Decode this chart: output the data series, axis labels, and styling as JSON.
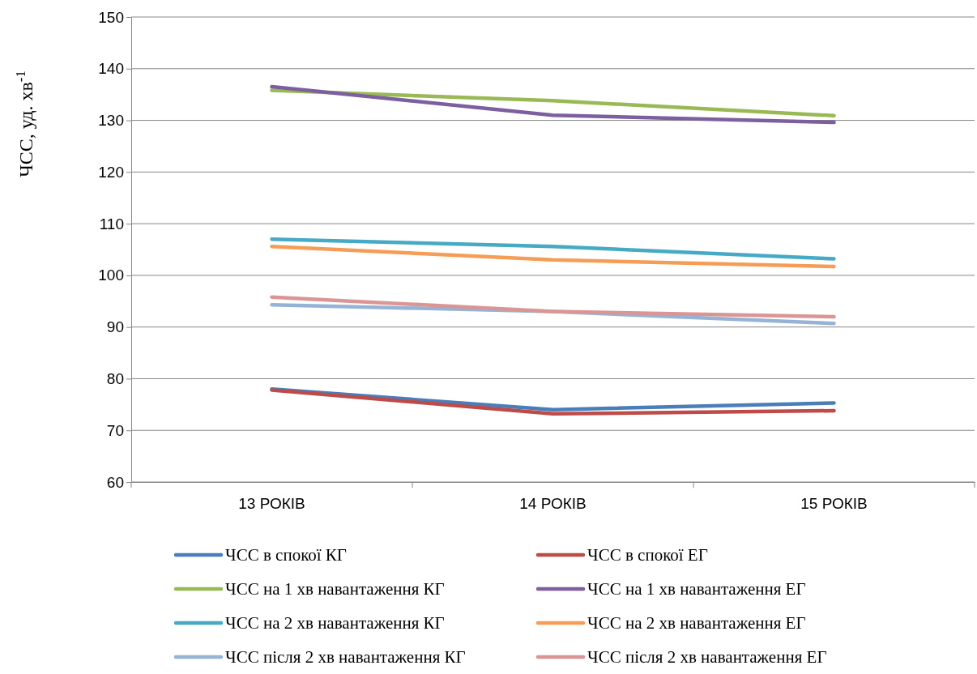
{
  "chart_data": {
    "type": "line",
    "ylabel": "ЧСС, уд. хв$^{-1}$",
    "categories": [
      "13 РОКІВ",
      "14 РОКІВ",
      "15 РОКІВ"
    ],
    "ylim": [
      60,
      150
    ],
    "yticks": [
      60,
      70,
      80,
      90,
      100,
      110,
      120,
      130,
      140,
      150
    ],
    "grid": "y",
    "legend": "bottom",
    "marker": "none",
    "line_style": "solid",
    "series": [
      {
        "name": "ЧСС в спокої КГ",
        "color": "#4a7ebb",
        "values": [
          78,
          74,
          75.3
        ]
      },
      {
        "name": "ЧСС в спокої ЕГ",
        "color": "#be4b48",
        "values": [
          77.8,
          73.2,
          73.8
        ]
      },
      {
        "name": "ЧСС на 1 хв навантаження КГ",
        "color": "#98b954",
        "values": [
          135.8,
          133.8,
          130.9
        ]
      },
      {
        "name": "ЧСС на 1 хв навантаження ЕГ",
        "color": "#7d5fa0",
        "values": [
          136.5,
          131,
          129.6
        ]
      },
      {
        "name": "ЧСС на 2 хв навантаження КГ",
        "color": "#46aac5",
        "values": [
          107,
          105.6,
          103.2
        ]
      },
      {
        "name": "ЧСС на 2 хв навантаження ЕГ",
        "color": "#f59d56",
        "values": [
          105.6,
          103,
          101.7
        ]
      },
      {
        "name": "ЧСС після 2 хв навантаження КГ",
        "color": "#95b3d7",
        "values": [
          94.3,
          93,
          90.7
        ]
      },
      {
        "name": "ЧСС після 2 хв навантаження ЕГ",
        "color": "#d99694",
        "values": [
          95.8,
          93,
          92
        ]
      }
    ]
  }
}
